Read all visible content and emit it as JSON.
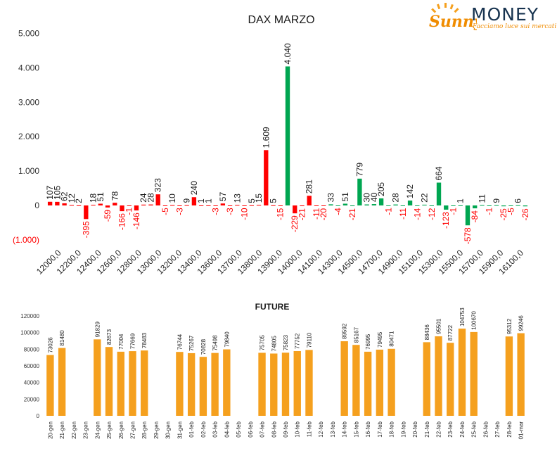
{
  "logo": {
    "brand_left": "Sunny",
    "brand_right": "MONEY",
    "tagline": "Facciamo luce sui mercati"
  },
  "colors": {
    "positive": "#00a651",
    "negative": "#ff0000",
    "future": "#f5a01e",
    "axis_text": "#333333",
    "negative_label": "#ff0000",
    "positive_label": "#1a1a1a"
  },
  "chart_data": [
    {
      "type": "bar",
      "title": "DAX MARZO",
      "ylim": [
        -1000,
        5000
      ],
      "yticks": [
        5000,
        4000,
        3000,
        2000,
        1000,
        0,
        -1000
      ],
      "ytick_labels": [
        "5.000",
        "4.000",
        "3.000",
        "2.000",
        "1.000",
        "0",
        "(1.000)"
      ],
      "grid": false,
      "legend": "none",
      "categories": [
        "12000,0",
        "12200,0",
        "12400,0",
        "12600,0",
        "12800,0",
        "13000,0",
        "13200,0",
        "13400,0",
        "13600,0",
        "13700,0",
        "13800,0",
        "13900,0",
        "14000,0",
        "14100,0",
        "14300,0",
        "14500,0",
        "14700,0",
        "14900,0",
        "15100,0",
        "15300,0",
        "15500,0",
        "15700,0",
        "15900,0",
        "16100,0"
      ],
      "bars": [
        {
          "value": 107,
          "label": "107",
          "color": "negative"
        },
        {
          "value": 105,
          "label": "105",
          "color": "negative"
        },
        {
          "value": 62,
          "label": "62",
          "color": "negative"
        },
        {
          "value": 12,
          "label": "12",
          "color": "negative"
        },
        {
          "value": 2,
          "label": "2",
          "color": "negative"
        },
        {
          "value": -395,
          "label": "-395",
          "color": "negative"
        },
        {
          "value": 18,
          "label": "18",
          "color": "negative"
        },
        {
          "value": 51,
          "label": "51",
          "color": "negative"
        },
        {
          "value": -59,
          "label": "-59",
          "color": "negative"
        },
        {
          "value": 78,
          "label": "78",
          "color": "negative"
        },
        {
          "value": -166,
          "label": "-166",
          "color": "negative"
        },
        {
          "value": -1,
          "label": "-1",
          "color": "negative"
        },
        {
          "value": -146,
          "label": "-146",
          "color": "negative"
        },
        {
          "value": 24,
          "label": "24",
          "color": "negative"
        },
        {
          "value": 28,
          "label": "28",
          "color": "negative"
        },
        {
          "value": 323,
          "label": "323",
          "color": "negative"
        },
        {
          "value": -5,
          "label": "-5",
          "color": "negative"
        },
        {
          "value": 10,
          "label": "10",
          "color": "negative"
        },
        {
          "value": -3,
          "label": "-3",
          "color": "negative"
        },
        {
          "value": 9,
          "label": "9",
          "color": "negative"
        },
        {
          "value": 240,
          "label": "240",
          "color": "negative"
        },
        {
          "value": 1,
          "label": "1",
          "color": "negative"
        },
        {
          "value": 1,
          "label": "1",
          "color": "negative"
        },
        {
          "value": -3,
          "label": "-3",
          "color": "negative"
        },
        {
          "value": 57,
          "label": "57",
          "color": "negative"
        },
        {
          "value": -3,
          "label": "-3",
          "color": "negative"
        },
        {
          "value": 13,
          "label": "13",
          "color": "negative"
        },
        {
          "value": -10,
          "label": "-10",
          "color": "negative"
        },
        {
          "value": 5,
          "label": "5",
          "color": "negative"
        },
        {
          "value": 15,
          "label": "15",
          "color": "negative"
        },
        {
          "value": 1609,
          "label": "1.609",
          "color": "negative"
        },
        {
          "value": 5,
          "label": "5",
          "color": "negative"
        },
        {
          "value": -15,
          "label": "-15",
          "color": "negative"
        },
        {
          "value": 4040,
          "label": "4.040",
          "color": "positive"
        },
        {
          "value": -229,
          "label": "-229",
          "color": "negative"
        },
        {
          "value": -21,
          "label": "-21",
          "color": "negative"
        },
        {
          "value": 281,
          "label": "281",
          "color": "negative"
        },
        {
          "value": -11,
          "label": "-11",
          "color": "negative"
        },
        {
          "value": -20,
          "label": "-20",
          "color": "negative"
        },
        {
          "value": 33,
          "label": "33",
          "color": "positive"
        },
        {
          "value": -4,
          "label": "-4",
          "color": "positive"
        },
        {
          "value": 51,
          "label": "51",
          "color": "positive"
        },
        {
          "value": -21,
          "label": "-21",
          "color": "positive"
        },
        {
          "value": 779,
          "label": "779",
          "color": "positive"
        },
        {
          "value": 30,
          "label": "30",
          "color": "positive"
        },
        {
          "value": 40,
          "label": "40",
          "color": "positive"
        },
        {
          "value": 205,
          "label": "205",
          "color": "positive"
        },
        {
          "value": -1,
          "label": "-1",
          "color": "positive"
        },
        {
          "value": 28,
          "label": "28",
          "color": "positive"
        },
        {
          "value": -11,
          "label": "-11",
          "color": "positive"
        },
        {
          "value": 142,
          "label": "142",
          "color": "positive"
        },
        {
          "value": -14,
          "label": "-14",
          "color": "positive"
        },
        {
          "value": 22,
          "label": "22",
          "color": "positive"
        },
        {
          "value": -12,
          "label": "-12",
          "color": "positive"
        },
        {
          "value": 664,
          "label": "664",
          "color": "positive"
        },
        {
          "value": -123,
          "label": "-123",
          "color": "positive"
        },
        {
          "value": -1,
          "label": "-1",
          "color": "positive"
        },
        {
          "value": 1,
          "label": "1",
          "color": "positive"
        },
        {
          "value": -578,
          "label": "-578",
          "color": "positive"
        },
        {
          "value": -84,
          "label": "-84",
          "color": "positive"
        },
        {
          "value": 11,
          "label": "11",
          "color": "positive"
        },
        {
          "value": -1,
          "label": "-1",
          "color": "positive"
        },
        {
          "value": 9,
          "label": "9",
          "color": "positive"
        },
        {
          "value": -25,
          "label": "-25",
          "color": "positive"
        },
        {
          "value": -5,
          "label": "-5",
          "color": "positive"
        },
        {
          "value": 6,
          "label": "6",
          "color": "positive"
        },
        {
          "value": -26,
          "label": "-26",
          "color": "positive"
        }
      ]
    },
    {
      "type": "bar",
      "title": "FUTURE",
      "ylim": [
        0,
        120000
      ],
      "yticks": [
        0,
        20000,
        40000,
        60000,
        80000,
        100000,
        120000
      ],
      "grid": false,
      "legend": "none",
      "categories": [
        "20-gen",
        "21-gen",
        "22-gen",
        "23-gen",
        "24-gen",
        "25-gen",
        "26-gen",
        "27-gen",
        "28-gen",
        "29-gen",
        "30-gen",
        "31-gen",
        "01-feb",
        "02-feb",
        "03-feb",
        "04-feb",
        "05-feb",
        "06-feb",
        "07-feb",
        "08-feb",
        "09-feb",
        "10-feb",
        "11-feb",
        "12-feb",
        "13-feb",
        "14-feb",
        "15-feb",
        "16-feb",
        "17-feb",
        "18-feb",
        "19-feb",
        "20-feb",
        "21-feb",
        "22-feb",
        "23-feb",
        "24-feb",
        "25-feb",
        "26-feb",
        "27-feb",
        "28-feb",
        "01-mar"
      ],
      "values": [
        73026,
        81480,
        null,
        null,
        91829,
        82673,
        77004,
        77669,
        78483,
        null,
        null,
        76744,
        75267,
        70828,
        75498,
        79840,
        null,
        null,
        75705,
        74805,
        75823,
        77752,
        79110,
        null,
        null,
        89592,
        85167,
        76995,
        79495,
        80471,
        null,
        null,
        88436,
        95501,
        87722,
        104753,
        100670,
        null,
        null,
        95312,
        99246
      ]
    }
  ]
}
